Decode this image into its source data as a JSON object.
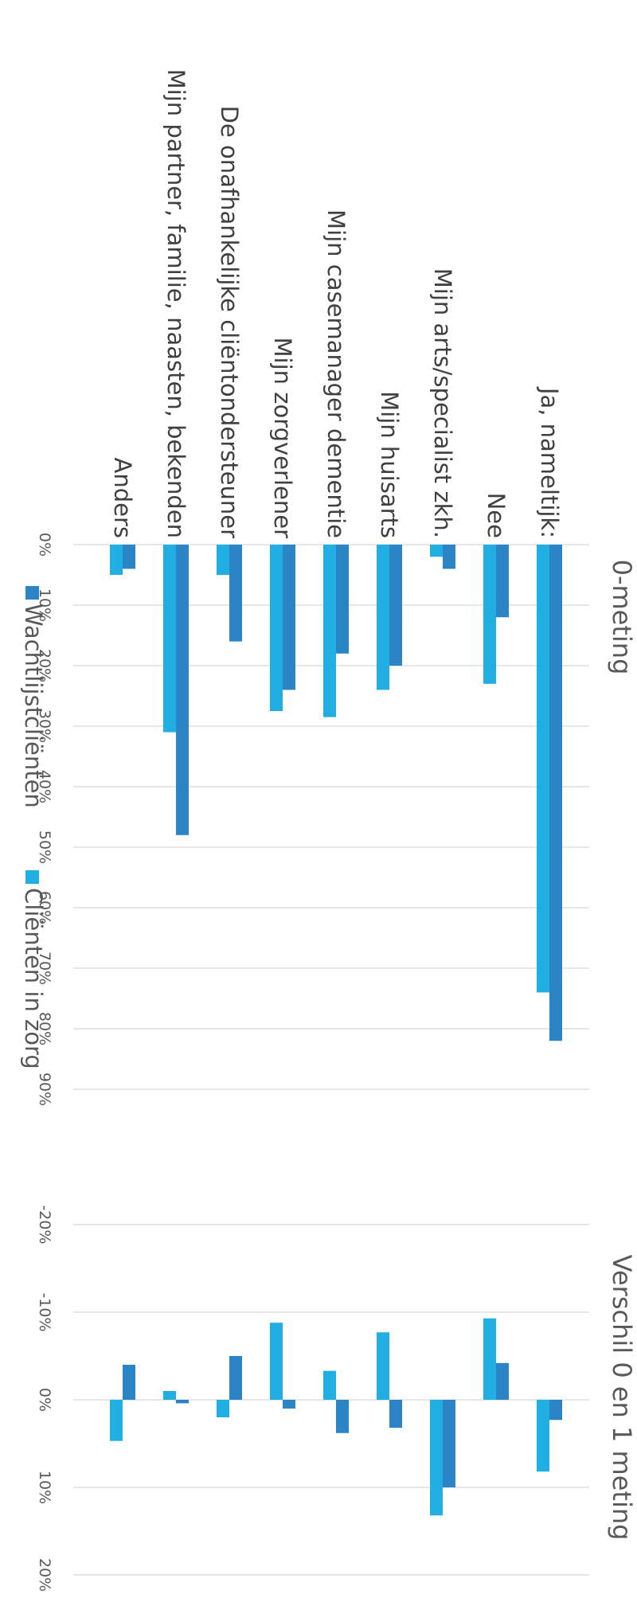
{
  "colors": {
    "wachtlijst": "#2a84c6",
    "inzorg": "#21aee3",
    "grid": "#d9d9d9"
  },
  "chart_data": [
    {
      "type": "bar",
      "title": "0-meting",
      "categories": [
        "Ja, nameltijk:",
        "Nee",
        "Mijn arts/specialist zkh.",
        "Mijn huisarts",
        "Mijn casemanager dementie",
        "Mijn zorgverlener",
        "De onafhankelijke cliëntondersteuner",
        "Mijn partner, familie, naasten, bekenden",
        "Anders"
      ],
      "series": [
        {
          "name": "Wachtlijstcliënten",
          "values": [
            82,
            12,
            4,
            20,
            18,
            24,
            16,
            48,
            4
          ]
        },
        {
          "name": "Cliënten in zorg",
          "values": [
            74,
            23,
            2,
            24,
            28.5,
            27.5,
            5,
            31,
            5
          ]
        }
      ],
      "ylim": [
        0,
        90
      ],
      "ticks": [
        "0%",
        "10%",
        "20%",
        "30%",
        "40%",
        "50%",
        "60%",
        "70%",
        "80%",
        "90%"
      ],
      "grid": true,
      "legend": "bottom"
    },
    {
      "type": "bar",
      "title": "Verschil 0 en 1 meting",
      "categories": [
        "Ja, nameltijk:",
        "Nee",
        "Mijn arts/specialist zkh.",
        "Mijn huisarts",
        "Mijn casemanager dementie",
        "Mijn zorgverlener",
        "De onafhankelijke cliëntondersteuner",
        "Mijn partner, familie, naasten, bekenden",
        "Anders"
      ],
      "series": [
        {
          "name": "Wachtlijstcliënten",
          "values": [
            2.3,
            -4.2,
            10,
            3.2,
            3.8,
            1,
            -5,
            0.4,
            -4
          ]
        },
        {
          "name": "Cliënten in zorg",
          "values": [
            8.2,
            -9.3,
            13.2,
            -7.7,
            -3.3,
            -8.8,
            2,
            -1,
            4.7
          ]
        }
      ],
      "ylim": [
        -20,
        20
      ],
      "ticks": [
        "-20%",
        "-10%",
        "0%",
        "10%",
        "20%"
      ],
      "grid": true
    }
  ]
}
